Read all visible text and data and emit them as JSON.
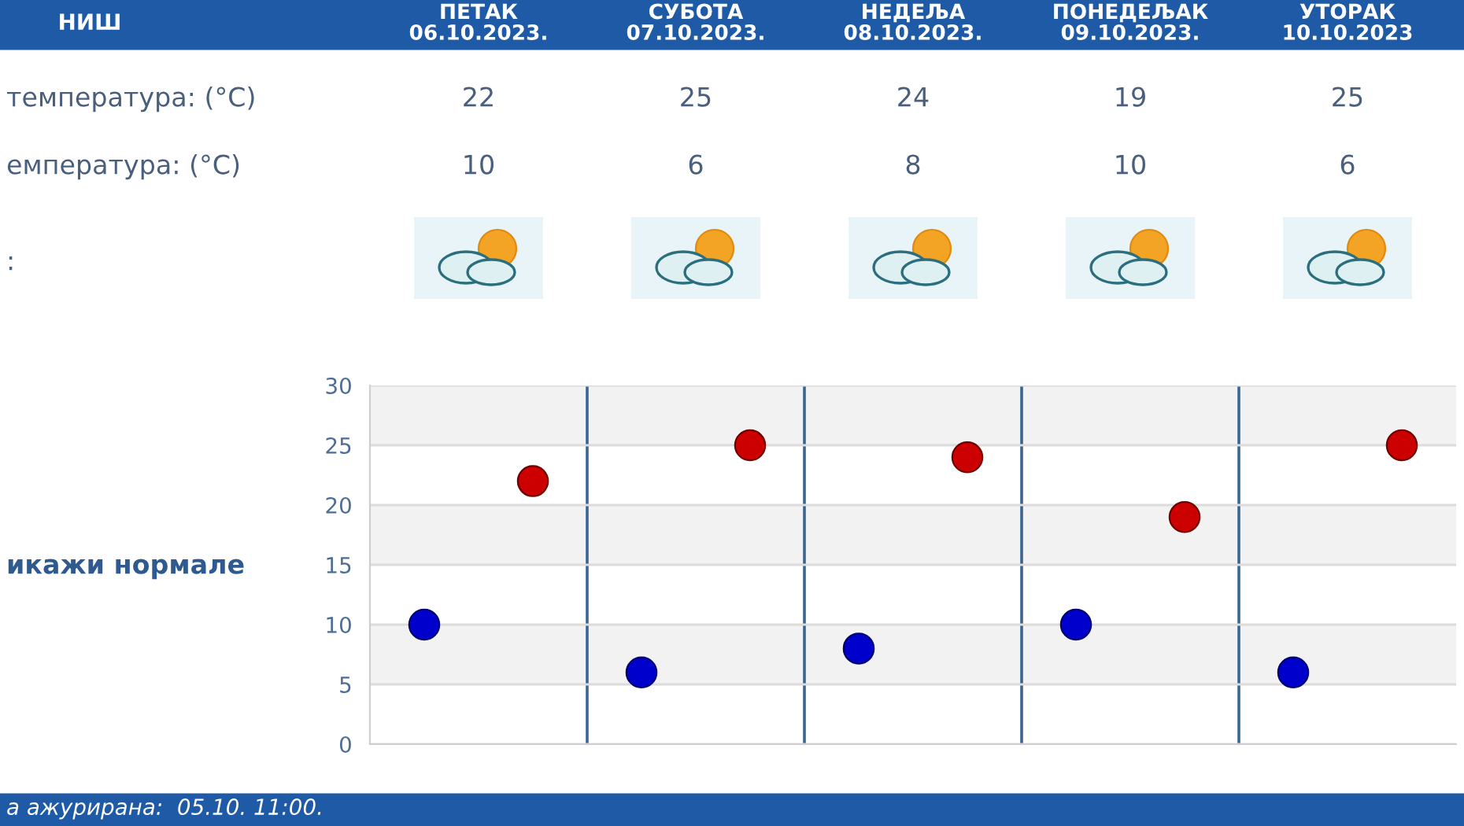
{
  "chart_data": {
    "type": "scatter",
    "title": "НИШ",
    "categories": [
      null,
      null,
      null,
      null,
      null
    ],
    "series": [
      {
        "color": "#cc0000",
        "values": [
          22,
          25,
          24,
          19,
          25
        ]
      },
      {
        "color": "#0000cc",
        "values": [
          10,
          6,
          8,
          10,
          6
        ]
      }
    ],
    "ylim": [
      0,
      30
    ],
    "yticks": [
      0,
      5,
      10,
      15,
      20,
      25,
      30
    ],
    "grid": true,
    "marker": "circle",
    "data_labels": true,
    "annotations": [
      "ПЕТАК\n06.10.2023.",
      "СУБОТА\n07.10.2023.",
      "НЕДЕЉА\n08.10.2023.",
      "ПОНЕДЕЉАК\n09.10.2023.",
      "УТОРАК\n10.10.2023",
      "температура: (°C)",
      "емпература: (°C)",
      ":",
      "икажи нормале",
      "а ажурирана:  05.10. 11:00."
    ]
  }
}
